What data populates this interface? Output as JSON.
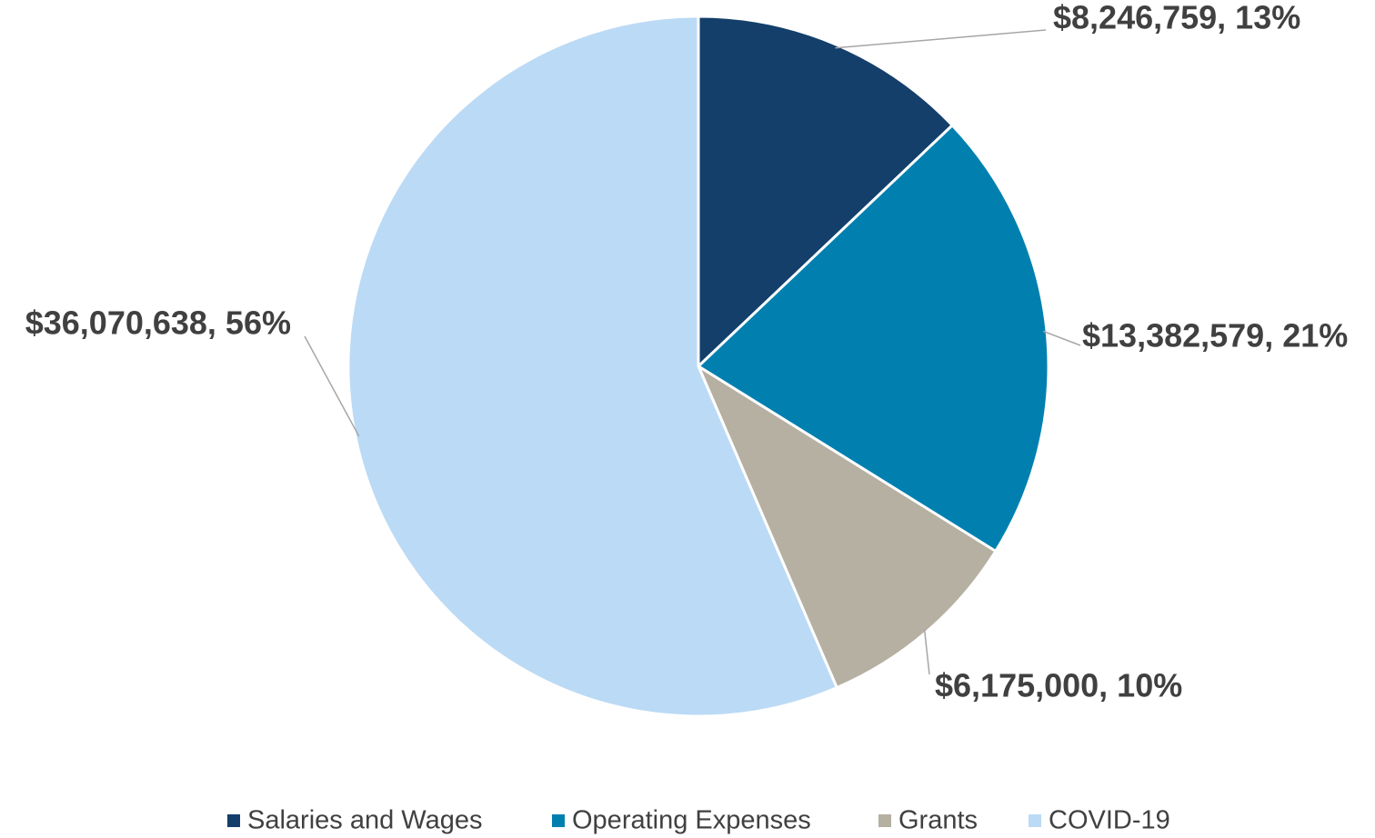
{
  "chart_data": {
    "type": "pie",
    "categories": [
      "Salaries and Wages",
      "Operating Expenses",
      "Grants",
      "COVID-19"
    ],
    "values": [
      8246759,
      13382579,
      6175000,
      36070638
    ],
    "value_labels": [
      "$8,246,759, 13%",
      "$13,382,579, 21%",
      "$6,175,000, 10%",
      "$36,070,638, 56%"
    ],
    "colors": [
      "#133f6a",
      "#0180b0",
      "#b6b0a2",
      "#bbdaf5"
    ],
    "legend": "bottom"
  }
}
